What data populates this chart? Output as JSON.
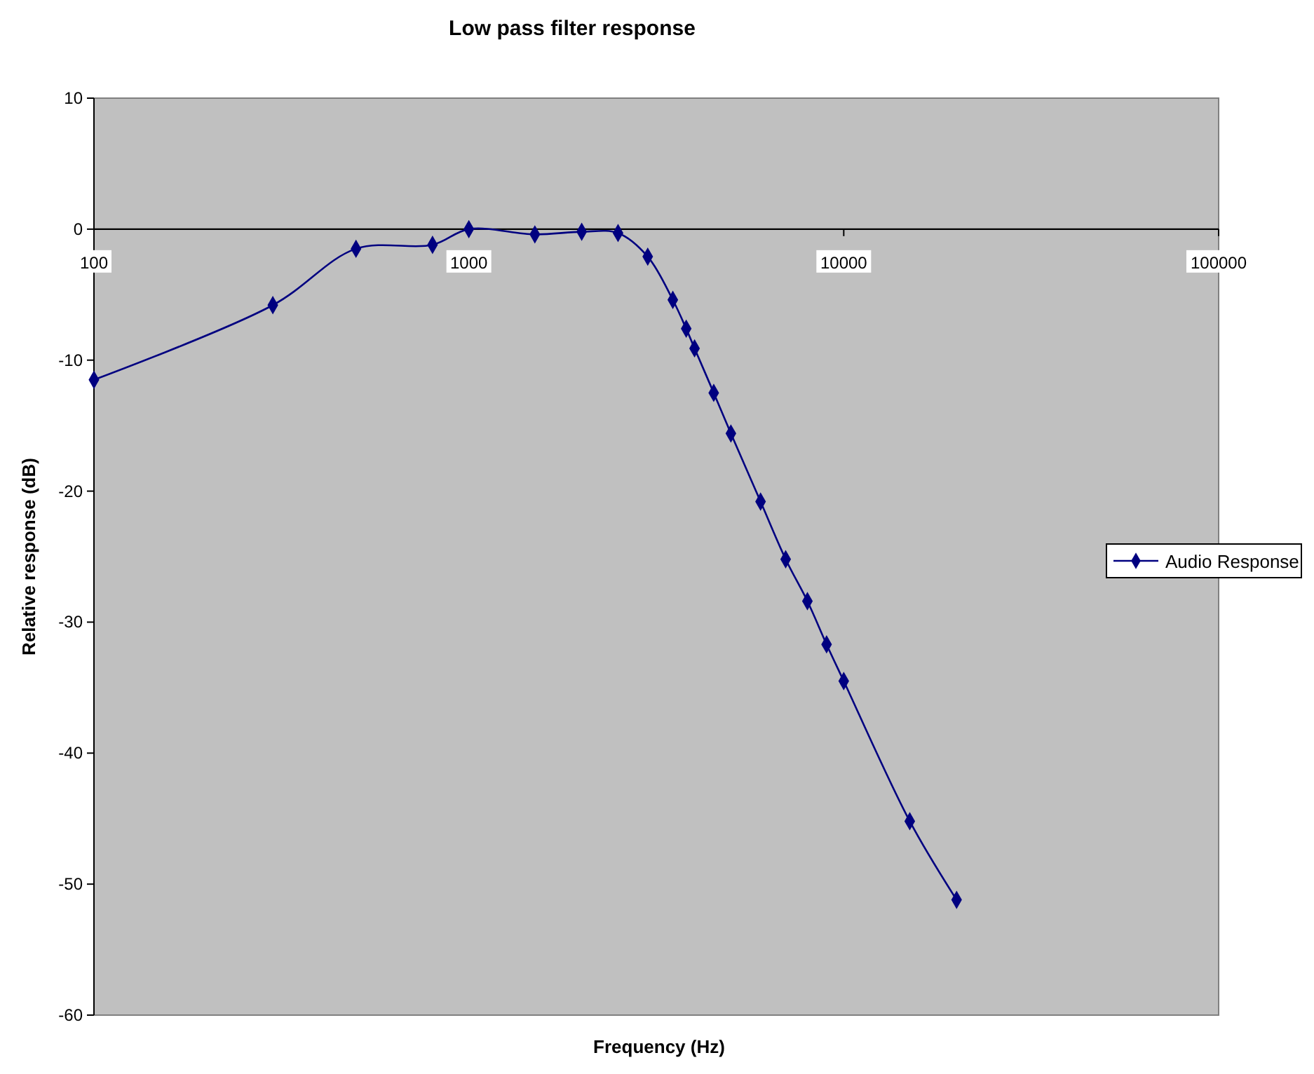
{
  "chart_data": {
    "type": "line",
    "title": "Low pass filter response",
    "xlabel": "Frequency (Hz)",
    "ylabel": "Relative response (dB)",
    "x": [
      100,
      300,
      500,
      800,
      1000,
      1500,
      2000,
      2500,
      3000,
      3500,
      3800,
      4000,
      4500,
      5000,
      6000,
      7000,
      8000,
      9000,
      10000,
      15000,
      20000
    ],
    "series": [
      {
        "name": "Audio Response",
        "color": "#000080",
        "values": [
          -11.5,
          -5.8,
          -1.5,
          -1.2,
          0,
          -0.4,
          -0.2,
          -0.3,
          -2.1,
          -5.4,
          -7.6,
          -9.1,
          -12.5,
          -15.6,
          -20.8,
          -25.2,
          -28.4,
          -31.7,
          -34.5,
          -45.2,
          -51.2
        ]
      }
    ],
    "log": "x",
    "xlim": [
      100,
      100000
    ],
    "xticks": [
      100,
      1000,
      10000,
      100000
    ],
    "ylim": [
      -60,
      10
    ],
    "yticks": [
      10,
      0,
      -10,
      -20,
      -30,
      -40,
      -50,
      -60
    ],
    "grid": false,
    "legend": "right",
    "marker": "diamond",
    "line_style": "solid"
  }
}
